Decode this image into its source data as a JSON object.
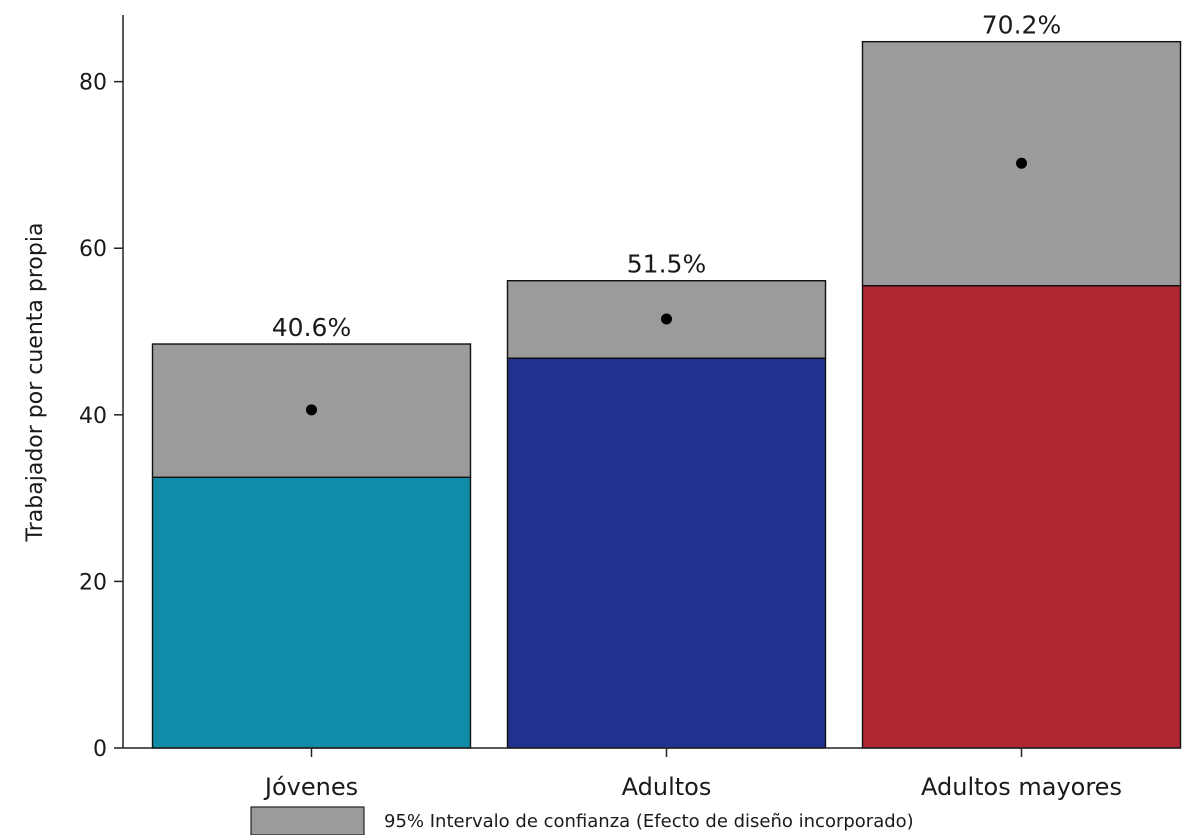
{
  "chart_data": {
    "type": "bar",
    "title": "",
    "xlabel": "",
    "ylabel": "Trabajador por cuenta propia",
    "ylim": [
      0,
      88
    ],
    "yticks": [
      0,
      20,
      40,
      60,
      80
    ],
    "grid": false,
    "legend_placement": "bottom",
    "categories": [
      "Jóvenes",
      "Adultos",
      "Adultos mayores"
    ],
    "series": [
      {
        "values": [
          40.6,
          51.5,
          70.2
        ],
        "value_labels": [
          "40.6%",
          "51.5%",
          "70.2%"
        ],
        "ci_lower": [
          32.5,
          46.8,
          55.5
        ],
        "ci_upper": [
          48.5,
          56.1,
          84.8
        ],
        "colors": [
          "#118ca8",
          "#22318e",
          "#b12633"
        ]
      }
    ],
    "legend": [
      {
        "label": "95% Intervalo de confianza (Efecto de diseño incorporado)",
        "color": "#9b9b9b"
      }
    ]
  }
}
